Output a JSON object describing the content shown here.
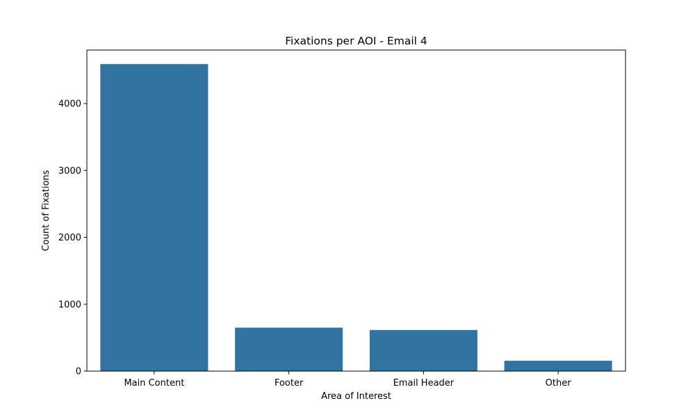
{
  "chart_data": {
    "type": "bar",
    "title": "Fixations per AOI - Email 4",
    "xlabel": "Area of Interest",
    "ylabel": "Count of Fixations",
    "categories": [
      "Main Content",
      "Footer",
      "Email Header",
      "Other"
    ],
    "values": [
      4590,
      650,
      615,
      155
    ],
    "ylim": [
      0,
      4800
    ],
    "yticks": [
      0,
      1000,
      2000,
      3000,
      4000
    ],
    "bar_color": "#3274a1",
    "grid": false,
    "legend": "none"
  }
}
